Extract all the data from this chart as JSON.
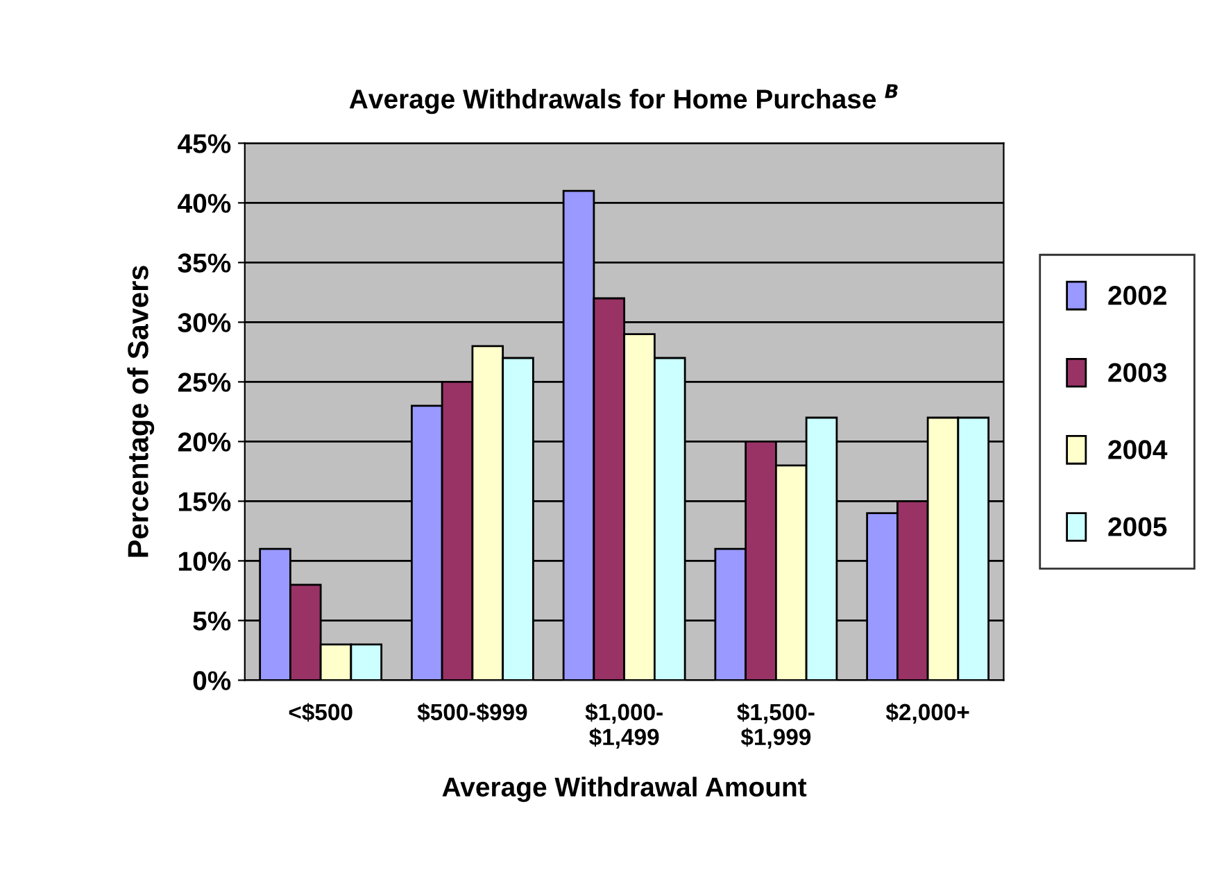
{
  "chart_data": {
    "type": "bar",
    "title": "Average Withdrawals for Home Purchase $^{B}$",
    "xlabel": "Average Withdrawal Amount",
    "ylabel": "Percentage of Savers",
    "categories": [
      "<$500",
      "$500-$999",
      "$1,000-\n$1,499",
      "$1,500-\n$1,999",
      "$2,000+"
    ],
    "series": [
      {
        "name": "2002",
        "color": "#9999ff",
        "values": [
          11,
          23,
          41,
          11,
          14
        ]
      },
      {
        "name": "2003",
        "color": "#993366",
        "values": [
          8,
          25,
          32,
          20,
          15
        ]
      },
      {
        "name": "2004",
        "color": "#ffffcc",
        "values": [
          3,
          28,
          29,
          18,
          22
        ]
      },
      {
        "name": "2005",
        "color": "#ccffff",
        "values": [
          3,
          27,
          27,
          22,
          22
        ]
      }
    ],
    "ylim": [
      0,
      45
    ],
    "yticks": [
      {
        "value": 0,
        "label": "0%"
      },
      {
        "value": 5,
        "label": "5%"
      },
      {
        "value": 10,
        "label": "10%"
      },
      {
        "value": 15,
        "label": "15%"
      },
      {
        "value": 20,
        "label": "20%"
      },
      {
        "value": 25,
        "label": "25%"
      },
      {
        "value": 30,
        "label": "30%"
      },
      {
        "value": 35,
        "label": "35%"
      },
      {
        "value": 40,
        "label": "40%"
      },
      {
        "value": 45,
        "label": "45%"
      }
    ],
    "grid": "y",
    "legend": "right"
  }
}
